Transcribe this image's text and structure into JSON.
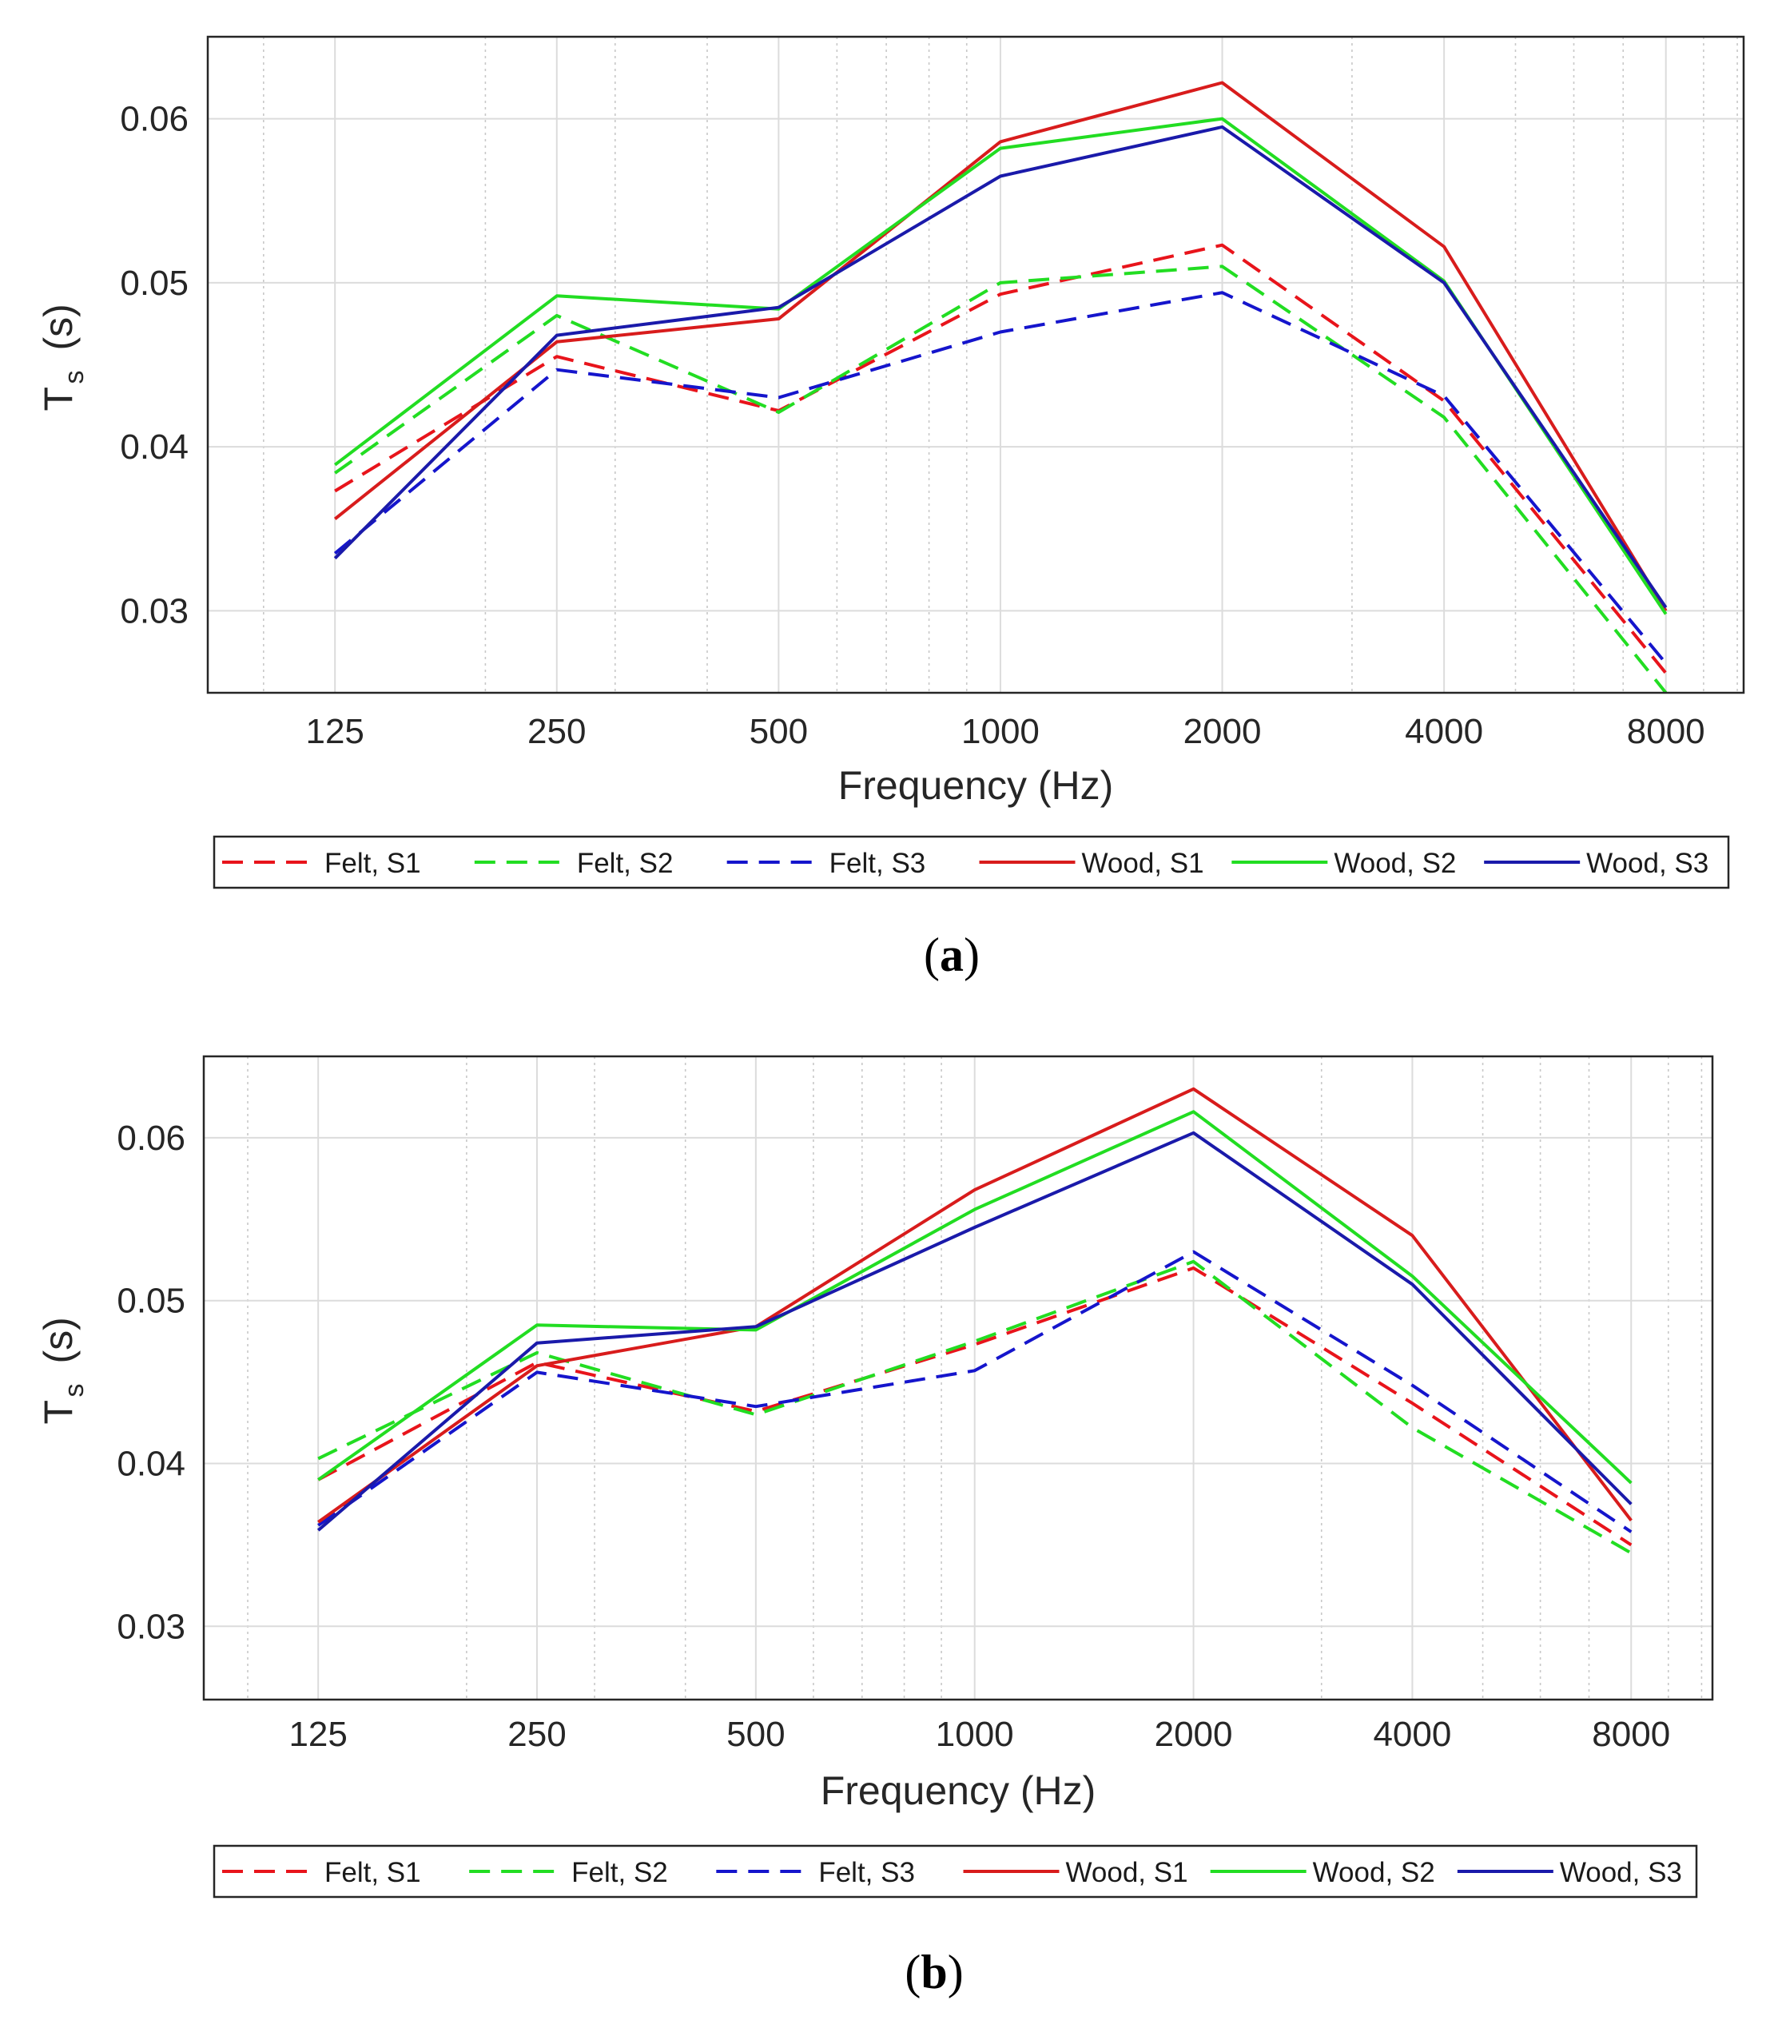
{
  "chart_data": [
    {
      "type": "line",
      "panel_label": "(a)",
      "panel_letter": "a",
      "xscale": "log2",
      "xlabel": "Frequency (Hz)",
      "ylabel_main": "T",
      "ylabel_sub": "s",
      "ylabel_unit": "(s)",
      "x": [
        125,
        250,
        500,
        1000,
        2000,
        4000,
        8000
      ],
      "x_tick_labels": [
        "125",
        "250",
        "500",
        "1000",
        "2000",
        "4000",
        "8000"
      ],
      "xlim": [
        84,
        10200
      ],
      "ylim": [
        0.025,
        0.065
      ],
      "yticks": [
        0.03,
        0.04,
        0.05,
        0.06
      ],
      "y_tick_labels": [
        "0.03",
        "0.04",
        "0.05",
        "0.06"
      ],
      "grid": true,
      "legend_position": "below",
      "series": [
        {
          "name": "Felt, S1",
          "color": "#e8141b",
          "style": "dashed",
          "values": [
            0.0373,
            0.0455,
            0.0422,
            0.0493,
            0.0523,
            0.0428,
            0.0262
          ]
        },
        {
          "name": "Felt, S2",
          "color": "#22dd22",
          "style": "dashed",
          "values": [
            0.0384,
            0.048,
            0.0421,
            0.05,
            0.051,
            0.0418,
            0.025
          ]
        },
        {
          "name": "Felt, S3",
          "color": "#1515cc",
          "style": "dashed",
          "values": [
            0.0335,
            0.0447,
            0.043,
            0.047,
            0.0494,
            0.0431,
            0.0268
          ]
        },
        {
          "name": "Wood, S1",
          "color": "#d81c1c",
          "style": "solid",
          "values": [
            0.0356,
            0.0464,
            0.0478,
            0.0586,
            0.0622,
            0.0522,
            0.03
          ]
        },
        {
          "name": "Wood, S2",
          "color": "#22dd22",
          "style": "solid",
          "values": [
            0.0389,
            0.0492,
            0.0484,
            0.0582,
            0.06,
            0.0501,
            0.0298
          ]
        },
        {
          "name": "Wood, S3",
          "color": "#1a1aaa",
          "style": "solid",
          "values": [
            0.0332,
            0.0468,
            0.0485,
            0.0565,
            0.0595,
            0.05,
            0.0302
          ]
        }
      ]
    },
    {
      "type": "line",
      "panel_label": "(b)",
      "panel_letter": "b",
      "xscale": "log2",
      "xlabel": "Frequency (Hz)",
      "ylabel_main": "T",
      "ylabel_sub": "s",
      "ylabel_unit": "(s)",
      "x": [
        125,
        250,
        500,
        1000,
        2000,
        4000,
        8000
      ],
      "x_tick_labels": [
        "125",
        "250",
        "500",
        "1000",
        "2000",
        "4000",
        "8000"
      ],
      "xlim": [
        87,
        10350
      ],
      "ylim": [
        0.0255,
        0.065
      ],
      "yticks": [
        0.03,
        0.04,
        0.05,
        0.06
      ],
      "y_tick_labels": [
        "0.03",
        "0.04",
        "0.05",
        "0.06"
      ],
      "grid": true,
      "legend_position": "below",
      "series": [
        {
          "name": "Felt, S1",
          "color": "#e8141b",
          "style": "dashed",
          "values": [
            0.039,
            0.0462,
            0.0432,
            0.0473,
            0.052,
            0.0437,
            0.035
          ]
        },
        {
          "name": "Felt, S2",
          "color": "#22dd22",
          "style": "dashed",
          "values": [
            0.0403,
            0.0468,
            0.043,
            0.0475,
            0.0524,
            0.0422,
            0.0345
          ]
        },
        {
          "name": "Felt, S3",
          "color": "#1515cc",
          "style": "dashed",
          "values": [
            0.0362,
            0.0456,
            0.0435,
            0.0457,
            0.053,
            0.0448,
            0.0358
          ]
        },
        {
          "name": "Wood, S1",
          "color": "#d81c1c",
          "style": "solid",
          "values": [
            0.0364,
            0.046,
            0.0484,
            0.0568,
            0.063,
            0.054,
            0.0365
          ]
        },
        {
          "name": "Wood, S2",
          "color": "#22dd22",
          "style": "solid",
          "values": [
            0.039,
            0.0485,
            0.0482,
            0.0556,
            0.0616,
            0.0515,
            0.0388
          ]
        },
        {
          "name": "Wood, S3",
          "color": "#1a1aaa",
          "style": "solid",
          "values": [
            0.0359,
            0.0474,
            0.0484,
            0.0545,
            0.0603,
            0.051,
            0.0375
          ]
        }
      ]
    }
  ]
}
